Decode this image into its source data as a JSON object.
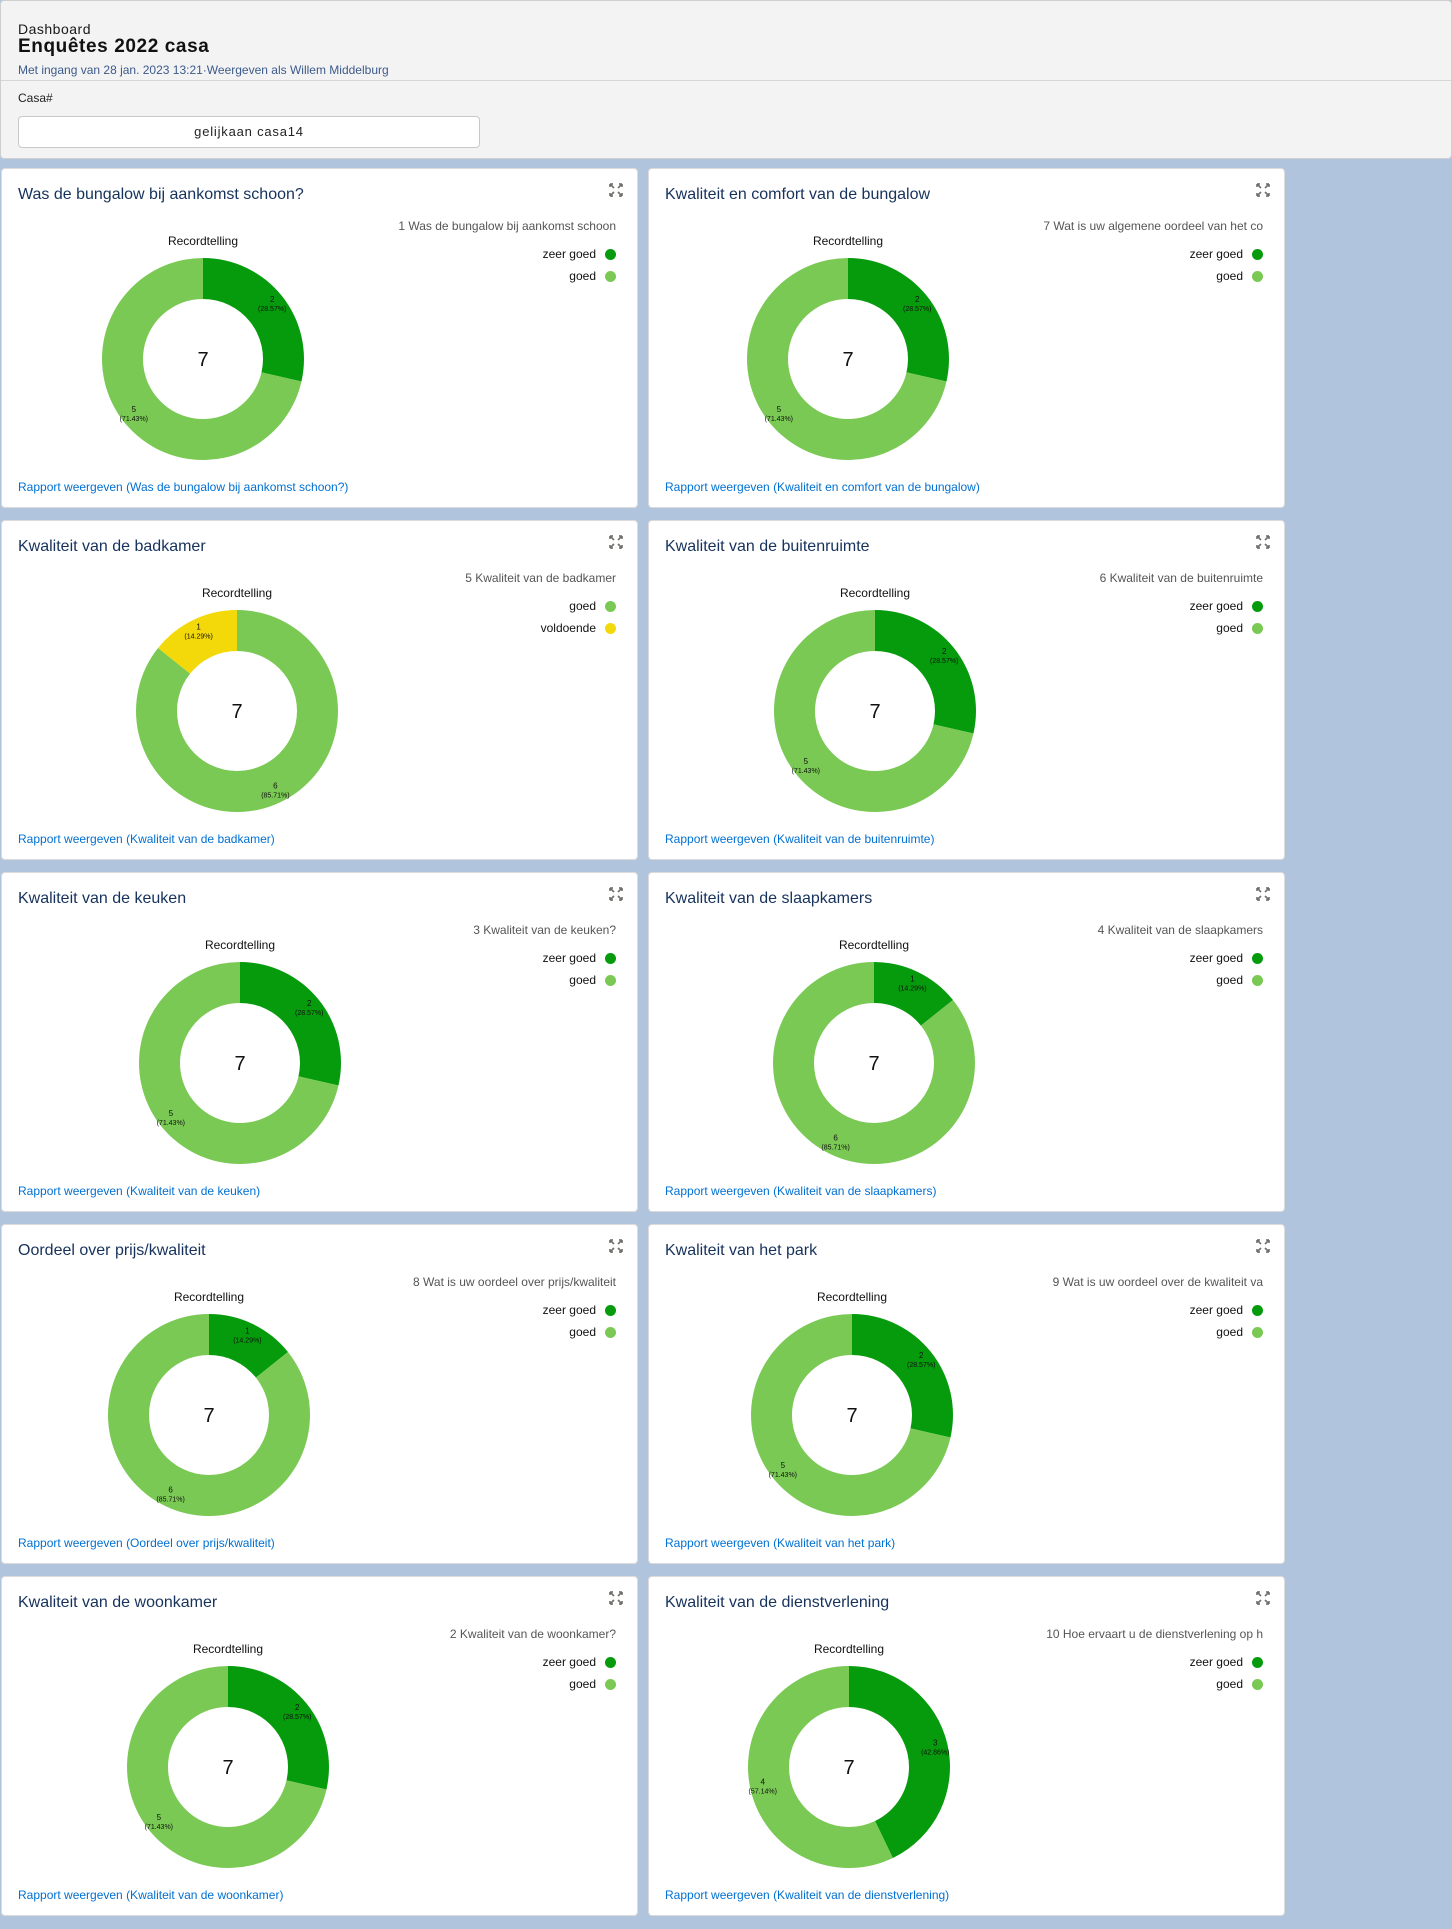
{
  "header": {
    "label": "Dashboard",
    "title": "Enquêtes 2022 casa",
    "subtitle": "Met ingang van 28 jan. 2023 13:21·Weergeven als Willem Middelburg",
    "filter_label": "Casa#",
    "filter_value": "gelijkaan casa14"
  },
  "colors": {
    "zeer goed": "#069b0d",
    "goed": "#7ac954",
    "voldoende": "#f4d90a",
    "background": "#b0c4de"
  },
  "icons": {
    "expand": "expand-icon"
  },
  "cards": [
    {
      "title": "Was de bungalow bij aankomst schoon?",
      "legend_title": "1 Was de bungalow bij aankomst schoon",
      "link": "Rapport weergeven (Was de bungalow bij aankomst schoon?)",
      "chart_data": {
        "type": "donut",
        "title": "Recordtelling",
        "total": "7",
        "slices": [
          {
            "label": "zeer goed",
            "value": 2,
            "text": "2",
            "percent": "(28.57%)"
          },
          {
            "label": "goed",
            "value": 5,
            "text": "5",
            "percent": "(71.43%)"
          }
        ]
      }
    },
    {
      "title": "Kwaliteit en comfort van de bungalow",
      "legend_title": "7 Wat is uw  algemene oordeel van het co",
      "link": "Rapport weergeven (Kwaliteit en comfort van de bungalow)",
      "chart_data": {
        "type": "donut",
        "title": "Recordtelling",
        "total": "7",
        "slices": [
          {
            "label": "zeer goed",
            "value": 2,
            "text": "2",
            "percent": "(28.57%)"
          },
          {
            "label": "goed",
            "value": 5,
            "text": "5",
            "percent": "(71.43%)"
          }
        ]
      }
    },
    {
      "title": "Kwaliteit van de badkamer",
      "legend_title": "5 Kwaliteit van de badkamer",
      "link": "Rapport weergeven (Kwaliteit van de badkamer)",
      "chart_data": {
        "type": "donut",
        "title": "Recordtelling",
        "total": "7",
        "slices": [
          {
            "label": "goed",
            "value": 6,
            "text": "6",
            "percent": "(85.71%)"
          },
          {
            "label": "voldoende",
            "value": 1,
            "text": "1",
            "percent": "(14.29%)"
          }
        ]
      }
    },
    {
      "title": "Kwaliteit van de buitenruimte",
      "legend_title": "6 Kwaliteit van de buitenruimte",
      "link": "Rapport weergeven (Kwaliteit van de buitenruimte)",
      "chart_data": {
        "type": "donut",
        "title": "Recordtelling",
        "total": "7",
        "slices": [
          {
            "label": "zeer goed",
            "value": 2,
            "text": "2",
            "percent": "(28.57%)"
          },
          {
            "label": "goed",
            "value": 5,
            "text": "5",
            "percent": "(71.43%)"
          }
        ]
      }
    },
    {
      "title": "Kwaliteit van de keuken",
      "legend_title": "3 Kwaliteit van de keuken?",
      "link": "Rapport weergeven (Kwaliteit van de keuken)",
      "chart_data": {
        "type": "donut",
        "title": "Recordtelling",
        "total": "7",
        "slices": [
          {
            "label": "zeer goed",
            "value": 2,
            "text": "2",
            "percent": "(28.57%)"
          },
          {
            "label": "goed",
            "value": 5,
            "text": "5",
            "percent": "(71.43%)"
          }
        ]
      }
    },
    {
      "title": "Kwaliteit van de slaapkamers",
      "legend_title": "4 Kwaliteit van de slaapkamers",
      "link": "Rapport weergeven (Kwaliteit van de slaapkamers)",
      "chart_data": {
        "type": "donut",
        "title": "Recordtelling",
        "total": "7",
        "slices": [
          {
            "label": "zeer goed",
            "value": 1,
            "text": "1",
            "percent": "(14.29%)"
          },
          {
            "label": "goed",
            "value": 6,
            "text": "6",
            "percent": "(85.71%)"
          }
        ]
      }
    },
    {
      "title": "Oordeel over prijs/kwaliteit",
      "legend_title": "8 Wat is uw oordeel over prijs/kwaliteit",
      "link": "Rapport weergeven (Oordeel over prijs/kwaliteit)",
      "chart_data": {
        "type": "donut",
        "title": "Recordtelling",
        "total": "7",
        "slices": [
          {
            "label": "zeer goed",
            "value": 1,
            "text": "1",
            "percent": "(14.29%)"
          },
          {
            "label": "goed",
            "value": 6,
            "text": "6",
            "percent": "(85.71%)"
          }
        ]
      }
    },
    {
      "title": "Kwaliteit van het park",
      "legend_title": "9 Wat is uw oordeel over de kwaliteit va",
      "link": "Rapport weergeven (Kwaliteit van het park)",
      "chart_data": {
        "type": "donut",
        "title": "Recordtelling",
        "total": "7",
        "slices": [
          {
            "label": "zeer goed",
            "value": 2,
            "text": "2",
            "percent": "(28.57%)"
          },
          {
            "label": "goed",
            "value": 5,
            "text": "5",
            "percent": "(71.43%)"
          }
        ]
      }
    },
    {
      "title": "Kwaliteit van de woonkamer",
      "legend_title": "2 Kwaliteit van de woonkamer?",
      "link": "Rapport weergeven (Kwaliteit van de woonkamer)",
      "chart_data": {
        "type": "donut",
        "title": "Recordtelling",
        "total": "7",
        "slices": [
          {
            "label": "zeer goed",
            "value": 2,
            "text": "2",
            "percent": "(28.57%)"
          },
          {
            "label": "goed",
            "value": 5,
            "text": "5",
            "percent": "(71.43%)"
          }
        ]
      }
    },
    {
      "title": "Kwaliteit van de dienstverlening",
      "legend_title": "10 Hoe ervaart u de dienstverlening op h",
      "link": "Rapport weergeven (Kwaliteit van de dienstverlening)",
      "chart_data": {
        "type": "donut",
        "title": "Recordtelling",
        "total": "7",
        "slices": [
          {
            "label": "zeer goed",
            "value": 3,
            "text": "3",
            "percent": "(42.86%)"
          },
          {
            "label": "goed",
            "value": 4,
            "text": "4",
            "percent": "(57.14%)"
          }
        ]
      }
    }
  ]
}
